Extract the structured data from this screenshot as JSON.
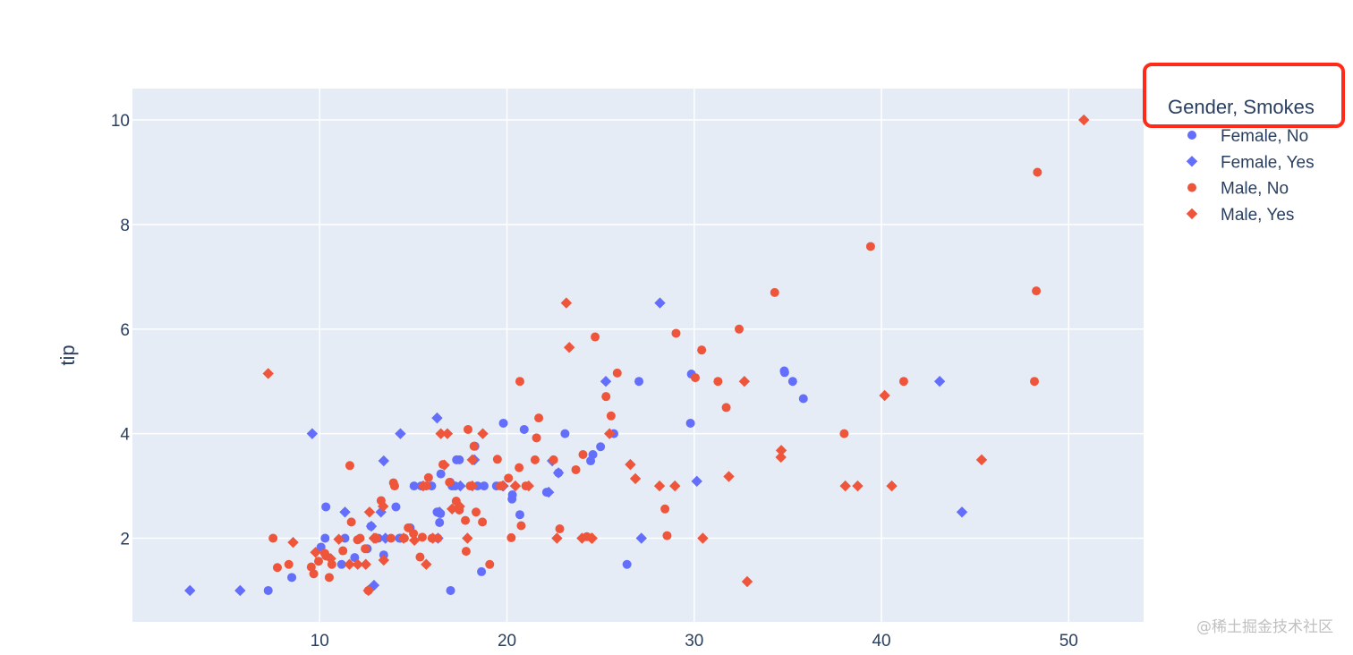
{
  "chart_data": {
    "type": "scatter",
    "title": "",
    "xlabel": "",
    "ylabel": "tip",
    "xlim": [
      0,
      54
    ],
    "ylim": [
      0.4,
      10.6
    ],
    "xticks": [
      10,
      20,
      30,
      40,
      50
    ],
    "yticks": [
      2,
      4,
      6,
      8,
      10
    ],
    "grid": true,
    "legend_title": "Gender, Smokes",
    "legend_position": "top-right outside",
    "series": [
      {
        "name": "Female, No",
        "color": "#636efa",
        "symbol": "circle",
        "x": [
          7.25,
          8.51,
          10.33,
          10.29,
          10.07,
          11.17,
          11.35,
          11.87,
          12.54,
          12.74,
          13.13,
          13.42,
          14.07,
          14.31,
          14.83,
          15.04,
          15.42,
          15.98,
          16.27,
          16.29,
          16.4,
          16.45,
          16.47,
          16.97,
          17.07,
          17.23,
          17.31,
          17.46,
          18.29,
          18.43,
          18.64,
          19.44,
          19.81,
          20.27,
          20.29,
          20.69,
          20.92,
          22.12,
          22.75,
          23.1,
          24.47,
          24.59,
          25.0,
          25.71,
          26.41,
          27.05,
          29.85,
          29.8,
          34.81,
          34.83,
          35.26,
          35.83,
          16.99,
          18.78,
          14.26
        ],
        "y": [
          1.0,
          1.25,
          2.6,
          2.0,
          1.83,
          1.5,
          2.0,
          1.63,
          1.8,
          2.23,
          2.0,
          1.68,
          2.6,
          2.0,
          2.2,
          3.0,
          3.0,
          3.0,
          2.5,
          2.5,
          2.3,
          2.47,
          3.23,
          3.07,
          3.0,
          3.0,
          3.5,
          3.5,
          3.76,
          3.0,
          1.36,
          3.0,
          4.2,
          2.75,
          2.83,
          2.45,
          4.08,
          2.88,
          3.25,
          4.0,
          3.48,
          3.6,
          3.75,
          4.0,
          1.5,
          5.0,
          5.14,
          4.2,
          5.2,
          5.17,
          5.0,
          4.67,
          1.0,
          3.0,
          2.0
        ]
      },
      {
        "name": "Female, Yes",
        "color": "#636efa",
        "symbol": "diamond",
        "x": [
          3.07,
          5.75,
          9.6,
          11.35,
          12.76,
          12.9,
          13.27,
          13.42,
          14.31,
          16.27,
          16.32,
          16.4,
          17.51,
          18.26,
          19.81,
          22.23,
          22.42,
          25.28,
          27.18,
          28.17,
          30.14,
          43.11,
          44.3,
          13.51,
          22.75
        ],
        "y": [
          1.0,
          1.0,
          4.0,
          2.5,
          2.23,
          1.1,
          2.5,
          3.48,
          4.0,
          4.3,
          2.0,
          2.5,
          3.0,
          3.5,
          3.0,
          2.88,
          3.48,
          5.0,
          2.0,
          6.5,
          3.09,
          5.0,
          2.5,
          2.0,
          3.25
        ]
      },
      {
        "name": "Male, No",
        "color": "#ef553b",
        "symbol": "circle",
        "x": [
          7.51,
          7.74,
          8.35,
          9.55,
          9.68,
          9.94,
          10.27,
          10.34,
          10.51,
          10.65,
          11.24,
          11.61,
          11.69,
          12.02,
          12.16,
          12.43,
          12.6,
          13.03,
          13.28,
          13.81,
          13.94,
          14.0,
          14.52,
          14.73,
          15.01,
          15.36,
          15.48,
          15.69,
          15.81,
          16.0,
          16.31,
          16.58,
          16.93,
          17.29,
          17.46,
          17.78,
          17.82,
          17.92,
          18.04,
          18.24,
          18.35,
          18.69,
          19.08,
          19.49,
          19.65,
          20.08,
          20.23,
          20.65,
          20.69,
          20.76,
          21.01,
          21.5,
          21.58,
          21.7,
          22.49,
          22.82,
          23.68,
          24.06,
          24.27,
          24.71,
          25.29,
          25.56,
          25.89,
          28.44,
          28.55,
          29.03,
          30.4,
          31.27,
          31.71,
          32.4,
          34.3,
          38.01,
          39.42,
          41.19,
          48.17,
          48.27,
          48.33,
          30.06
        ],
        "y": [
          2.0,
          1.44,
          1.5,
          1.45,
          1.32,
          1.56,
          1.71,
          1.66,
          1.25,
          1.5,
          1.76,
          3.39,
          2.31,
          1.97,
          2.0,
          1.8,
          1.0,
          2.0,
          2.72,
          2.0,
          3.06,
          3.0,
          2.0,
          2.2,
          2.09,
          1.64,
          2.02,
          3.0,
          3.16,
          2.0,
          2.0,
          3.41,
          3.07,
          2.71,
          2.54,
          2.34,
          1.75,
          4.08,
          3.0,
          3.76,
          2.5,
          2.31,
          1.5,
          3.51,
          3.0,
          3.15,
          2.01,
          3.35,
          5.0,
          2.24,
          3.0,
          3.5,
          3.92,
          4.3,
          3.5,
          2.18,
          3.31,
          3.6,
          2.03,
          5.85,
          4.71,
          4.34,
          5.16,
          2.56,
          2.05,
          5.92,
          5.6,
          5.0,
          4.5,
          6.0,
          6.7,
          4.0,
          7.58,
          5.0,
          5.0,
          6.73,
          9.0,
          5.07
        ]
      },
      {
        "name": "Male, Yes",
        "color": "#ef553b",
        "symbol": "diamond",
        "x": [
          7.25,
          8.58,
          9.78,
          10.59,
          11.02,
          11.59,
          12.03,
          12.46,
          12.66,
          12.9,
          13.0,
          13.39,
          13.42,
          14.48,
          15.06,
          15.53,
          15.69,
          16.04,
          16.47,
          16.66,
          16.82,
          17.07,
          17.47,
          17.89,
          18.15,
          18.71,
          19.77,
          20.45,
          21.16,
          22.67,
          23.17,
          23.33,
          24.01,
          24.52,
          25.48,
          26.59,
          26.86,
          28.15,
          28.97,
          30.46,
          31.85,
          32.68,
          32.83,
          34.63,
          34.65,
          38.07,
          38.73,
          40.17,
          40.55,
          45.35,
          50.81,
          12.6,
          18.15,
          24.55
        ],
        "y": [
          5.15,
          1.92,
          1.73,
          1.61,
          1.98,
          1.5,
          1.5,
          1.5,
          2.5,
          2.0,
          2.0,
          2.61,
          1.58,
          2.0,
          1.96,
          3.0,
          1.5,
          2.0,
          4.0,
          3.4,
          4.0,
          2.56,
          2.61,
          2.0,
          3.5,
          4.0,
          3.0,
          3.0,
          3.0,
          2.0,
          6.5,
          5.65,
          2.0,
          2.0,
          4.0,
          3.41,
          3.14,
          3.0,
          3.0,
          2.0,
          3.18,
          5.0,
          1.17,
          3.55,
          3.68,
          3.0,
          3.0,
          4.73,
          3.0,
          3.5,
          10.0,
          1.0,
          3.0,
          2.0
        ]
      }
    ]
  },
  "watermark": "@稀土掘金技术社区",
  "highlight_color": "#ff2a1a"
}
